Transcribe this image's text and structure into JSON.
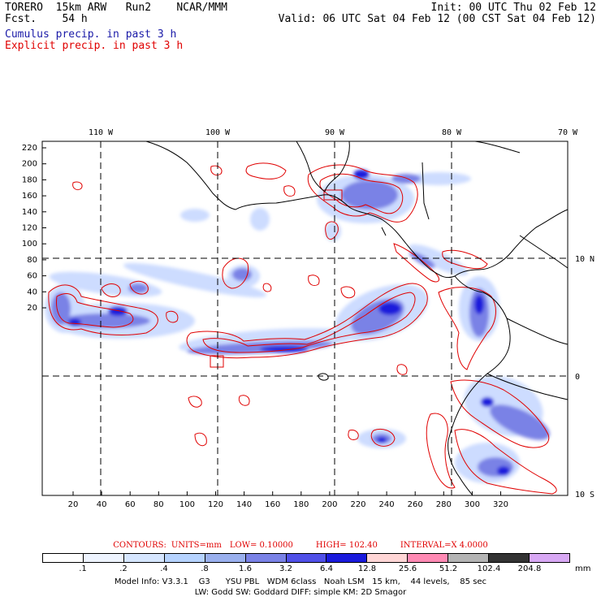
{
  "header": {
    "model": "TORERO  15km ARW",
    "run": "Run2",
    "org": "NCAR/MMM",
    "fcst_label": "Fcst.",
    "fcst_hours": "54 h",
    "init": "Init: 00 UTC Thu 02 Feb 12",
    "valid": "Valid: 06 UTC Sat 04 Feb 12 (00 CST Sat 04 Feb 12)"
  },
  "legend": {
    "cumulus": "Cumulus precip. in past 3 h",
    "explicit": "Explicit precip. in past 3 h",
    "cumulus_color": "#1a1aa8",
    "explicit_color": "#e00000"
  },
  "map": {
    "lon_labels": [
      "110 W",
      "100 W",
      "90 W",
      "80 W",
      "70 W"
    ],
    "lat_labels": [
      "10 N",
      "0",
      "10 S"
    ],
    "y_ticks": [
      "220",
      "200",
      "180",
      "160",
      "140",
      "120",
      "100",
      "80",
      "60",
      "40",
      "20"
    ],
    "x_ticks": [
      "20",
      "40",
      "60",
      "80",
      "100",
      "120",
      "140",
      "160",
      "180",
      "200",
      "220",
      "240",
      "260",
      "280",
      "300",
      "320"
    ],
    "high_box_labels": [
      "",
      ""
    ]
  },
  "contours": {
    "label": "CONTOURS:",
    "units": "UNITS=mm",
    "low": "LOW= 0.10000",
    "high": "HIGH= 102.40",
    "interval": "INTERVAL=X 4.0000"
  },
  "colorbar": {
    "labels": [
      ".1",
      ".2",
      ".4",
      ".8",
      "1.6",
      "3.2",
      "6.4",
      "12.8",
      "25.6",
      "51.2",
      "102.4",
      "204.8"
    ],
    "unit": "mm",
    "colors": [
      "#ffffff",
      "#eef4ff",
      "#d6e6ff",
      "#b6d3ff",
      "#9ab0ee",
      "#7a82e6",
      "#5050e8",
      "#1a1adc",
      "#ffd6d6",
      "#ff8ab4",
      "#b4b4b4",
      "#333333",
      "#d8a8f4"
    ]
  },
  "footer": {
    "line1": "Model Info: V3.3.1    G3      YSU PBL   WDM 6class   Noah LSM   15 km,    44 levels,    85 sec",
    "line2": "LW: Godd SW: Goddard DIFF: simple KM: 2D Smagor"
  }
}
